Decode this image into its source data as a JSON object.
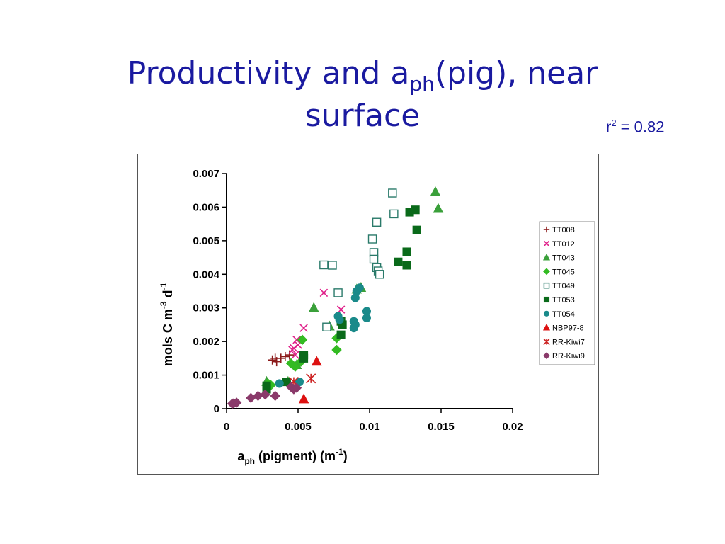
{
  "slide": {
    "title_main": "Productivity and a",
    "title_sub": "ph",
    "title_rest": "(pig), near",
    "title_line2": "surface",
    "r2_label": "r",
    "r2_sup": "2",
    "r2_value": " = 0.82"
  },
  "chart_data": {
    "type": "scatter",
    "xlabel": {
      "main": "a",
      "sub": "ph",
      "rest": " (pigment) (m",
      "sup": "-1",
      "end": ")"
    },
    "ylabel": {
      "main": "mols C m",
      "sup1": "-3",
      "mid": " d",
      "sup2": "-1"
    },
    "xlim": [
      0,
      0.02
    ],
    "ylim": [
      0,
      0.007
    ],
    "xticks": [
      0,
      0.005,
      0.01,
      0.015,
      0.02
    ],
    "xtick_labels": [
      "0",
      "0.005",
      "0.01",
      "0.015",
      "0.02"
    ],
    "yticks": [
      0,
      0.001,
      0.002,
      0.003,
      0.004,
      0.005,
      0.006,
      0.007
    ],
    "ytick_labels": [
      "0",
      "0.001",
      "0.002",
      "0.003",
      "0.004",
      "0.005",
      "0.006",
      "0.007"
    ],
    "grid": false,
    "legend_position": "right",
    "series": [
      {
        "name": "TT008",
        "marker": "plus",
        "color": "#8b1a1a",
        "filled": true,
        "points": [
          [
            0.0032,
            0.00145
          ],
          [
            0.0035,
            0.0014
          ],
          [
            0.0038,
            0.0015
          ],
          [
            0.0041,
            0.00155
          ],
          [
            0.0034,
            0.0015
          ],
          [
            0.0044,
            0.0016
          ]
        ]
      },
      {
        "name": "TT012",
        "marker": "x",
        "color": "#e0208a",
        "filled": true,
        "points": [
          [
            0.0068,
            0.00345
          ],
          [
            0.008,
            0.00295
          ],
          [
            0.0054,
            0.0024
          ],
          [
            0.0049,
            0.00205
          ],
          [
            0.0047,
            0.0018
          ],
          [
            0.0046,
            0.00175
          ],
          [
            0.005,
            0.0019
          ],
          [
            0.0048,
            0.0016
          ]
        ]
      },
      {
        "name": "TT043",
        "marker": "triangle",
        "color": "#3aa03a",
        "filled": true,
        "points": [
          [
            0.0146,
            0.00645
          ],
          [
            0.0148,
            0.00595
          ],
          [
            0.0061,
            0.003
          ],
          [
            0.0091,
            0.00355
          ],
          [
            0.0094,
            0.0036
          ],
          [
            0.0072,
            0.00245
          ],
          [
            0.0049,
            0.0013
          ],
          [
            0.0043,
            0.0008
          ],
          [
            0.0028,
            0.0008
          ]
        ]
      },
      {
        "name": "TT045",
        "marker": "diamond",
        "color": "#33bb22",
        "filled": true,
        "points": [
          [
            0.0053,
            0.00205
          ],
          [
            0.0077,
            0.0021
          ],
          [
            0.0077,
            0.00175
          ],
          [
            0.0045,
            0.00135
          ],
          [
            0.0048,
            0.00125
          ],
          [
            0.0052,
            0.0014
          ],
          [
            0.0029,
            0.00075
          ],
          [
            0.0031,
            0.0007
          ]
        ]
      },
      {
        "name": "TT049",
        "marker": "square",
        "color": "#2a7a6a",
        "filled": false,
        "points": [
          [
            0.0116,
            0.00642
          ],
          [
            0.0117,
            0.0058
          ],
          [
            0.0105,
            0.00555
          ],
          [
            0.0102,
            0.00505
          ],
          [
            0.0103,
            0.00465
          ],
          [
            0.0103,
            0.00445
          ],
          [
            0.0105,
            0.0042
          ],
          [
            0.0106,
            0.0041
          ],
          [
            0.0107,
            0.004
          ],
          [
            0.0068,
            0.00428
          ],
          [
            0.0074,
            0.00427
          ],
          [
            0.0078,
            0.00345
          ],
          [
            0.007,
            0.00243
          ]
        ]
      },
      {
        "name": "TT053",
        "marker": "square",
        "color": "#0a6a1a",
        "filled": true,
        "points": [
          [
            0.0128,
            0.00585
          ],
          [
            0.0132,
            0.00592
          ],
          [
            0.0133,
            0.00532
          ],
          [
            0.0126,
            0.00467
          ],
          [
            0.012,
            0.00437
          ],
          [
            0.0126,
            0.00427
          ],
          [
            0.008,
            0.0026
          ],
          [
            0.0081,
            0.0025
          ],
          [
            0.008,
            0.0022
          ],
          [
            0.0054,
            0.0016
          ],
          [
            0.0054,
            0.0015
          ],
          [
            0.0028,
            0.00068
          ],
          [
            0.0042,
            0.0008
          ],
          [
            0.0028,
            0.00058
          ]
        ]
      },
      {
        "name": "TT054",
        "marker": "circle",
        "color": "#1a8a8a",
        "filled": true,
        "points": [
          [
            0.0093,
            0.0036
          ],
          [
            0.0091,
            0.0035
          ],
          [
            0.009,
            0.0033
          ],
          [
            0.0078,
            0.00275
          ],
          [
            0.0079,
            0.00265
          ],
          [
            0.0089,
            0.0026
          ],
          [
            0.009,
            0.0025
          ],
          [
            0.0089,
            0.0024
          ],
          [
            0.0098,
            0.0029
          ],
          [
            0.0098,
            0.0027
          ],
          [
            0.0051,
            0.0008
          ],
          [
            0.0037,
            0.00075
          ]
        ]
      },
      {
        "name": "NBP97-8",
        "marker": "triangle",
        "color": "#dd1111",
        "filled": true,
        "points": [
          [
            0.0063,
            0.0014
          ],
          [
            0.0054,
            0.00028
          ]
        ]
      },
      {
        "name": "RR-Kiwi7",
        "marker": "asterisk",
        "color": "#cc2222",
        "filled": true,
        "points": [
          [
            0.0059,
            0.0009
          ],
          [
            0.0047,
            0.0008
          ]
        ]
      },
      {
        "name": "RR-Kiwi9",
        "marker": "diamond",
        "color": "#8a3a6a",
        "filled": true,
        "points": [
          [
            0.0004,
            0.00015
          ],
          [
            0.0007,
            0.00018
          ],
          [
            0.0017,
            0.00032
          ],
          [
            0.0022,
            0.00038
          ],
          [
            0.0027,
            0.00042
          ],
          [
            0.0034,
            0.00038
          ],
          [
            0.0045,
            0.00065
          ],
          [
            0.0047,
            0.00058
          ],
          [
            0.0049,
            0.00062
          ],
          [
            0.0005,
            0.00016
          ]
        ]
      }
    ]
  }
}
